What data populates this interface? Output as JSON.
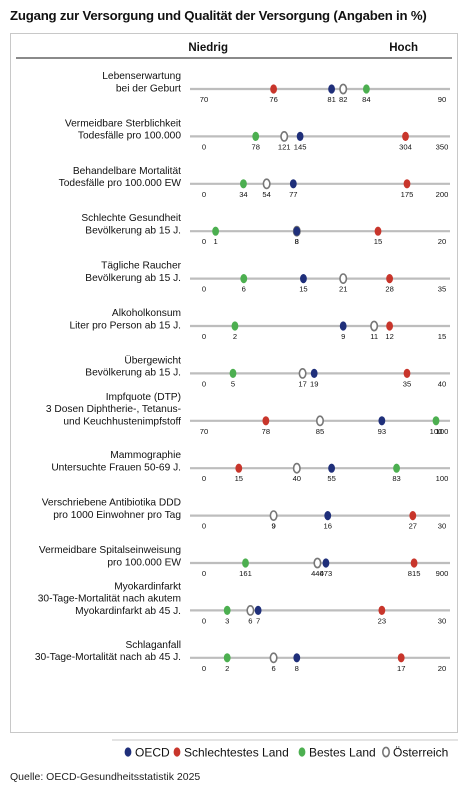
{
  "title": "Zugang zur Versorgung und Qualität der Versorgung (Angaben in %)",
  "header": {
    "low": "Niedrig",
    "high": "Hoch"
  },
  "source": "Quelle: OECD-Gesundheitsstatistik 2025",
  "colors": {
    "oecd": "#1f2f7a",
    "worst": "#c8352b",
    "best": "#4caf50",
    "austria": "#777777",
    "track": "#bdbdbd"
  },
  "chart_data": {
    "type": "scatter",
    "title": "Zugang zur Versorgung und Qualität der Versorgung (Angaben in %)",
    "legend": {
      "placement": "bottom-right",
      "entries": [
        {
          "key": "oecd",
          "label": "OECD"
        },
        {
          "key": "worst",
          "label": "Schlechtestes Land"
        },
        {
          "key": "best",
          "label": "Bestes Land"
        },
        {
          "key": "austria",
          "label": "Österreich"
        }
      ]
    },
    "indicators": [
      {
        "label": [
          "Lebenserwartung",
          "bei der Geburt"
        ],
        "min": 70,
        "max": 90,
        "oecd": 81,
        "worst": 76,
        "best": 84,
        "austria": 82
      },
      {
        "label": [
          "Vermeidbare Sterblichkeit",
          "Todesfälle pro 100.000"
        ],
        "min": 0,
        "max": 350,
        "oecd": 145,
        "worst": 304,
        "best": 78,
        "austria": 121
      },
      {
        "label": [
          "Behandelbare Mortalität",
          "Todesfälle pro 100.000 EW"
        ],
        "min": 0,
        "max": 200,
        "oecd": 77,
        "worst": 175,
        "best": 34,
        "austria": 54
      },
      {
        "label": [
          "Schlechte Gesundheit",
          "Bevölkerung ab 15 J."
        ],
        "min": 0,
        "max": 20,
        "oecd": 8,
        "worst": 15,
        "best": 1,
        "austria": 8
      },
      {
        "label": [
          "Tägliche Raucher",
          "Bevölkerung ab 15 J."
        ],
        "min": 0,
        "max": 35,
        "oecd": 15,
        "worst": 28,
        "best": 6,
        "austria": 21
      },
      {
        "label": [
          "Alkoholkonsum",
          "Liter pro Person ab 15 J."
        ],
        "min": 0,
        "max": 15,
        "oecd": 9,
        "worst": 12,
        "best": 2,
        "austria": 11
      },
      {
        "label": [
          "Übergewicht",
          "Bevölkerung ab 15 J."
        ],
        "min": 0,
        "max": 40,
        "oecd": 19,
        "worst": 35,
        "best": 5,
        "austria": 17
      },
      {
        "label": [
          "Impfquote (DTP)",
          "3 Dosen Diphtherie-, Tetanus-",
          "und Keuchhustenimpfstoff"
        ],
        "min": 70,
        "max": 100,
        "oecd": 93,
        "worst": 78,
        "best": 100,
        "austria": 85
      },
      {
        "label": [
          "Mammographie",
          "Untersuchte Frauen 50-69 J."
        ],
        "min": 0,
        "max": 100,
        "oecd": 55,
        "worst": 15,
        "best": 83,
        "austria": 40
      },
      {
        "label": [
          "Verschriebene Antibiotika DDD",
          "pro 1000 Einwohner pro Tag"
        ],
        "min": 0,
        "max": 30,
        "oecd": 16,
        "worst": 27,
        "best": 9,
        "austria": 9
      },
      {
        "label": [
          "Vermeidbare Spitalseinweisung",
          "pro 100.000 EW"
        ],
        "min": 0,
        "max": 900,
        "oecd": 473,
        "worst": 815,
        "best": 161,
        "austria": 440
      },
      {
        "label": [
          "Myokardinfarkt",
          "30-Tage-Mortalität nach akutem",
          "Myokardinfarkt ab 45 J."
        ],
        "min": 0,
        "max": 30,
        "oecd": 7,
        "worst": 23,
        "best": 3,
        "austria": 6
      },
      {
        "label": [
          "Schlaganfall",
          "30-Tage-Mortalität nach ab 45 J."
        ],
        "min": 0,
        "max": 20,
        "oecd": 8,
        "worst": 17,
        "best": 2,
        "austria": 6
      }
    ]
  }
}
